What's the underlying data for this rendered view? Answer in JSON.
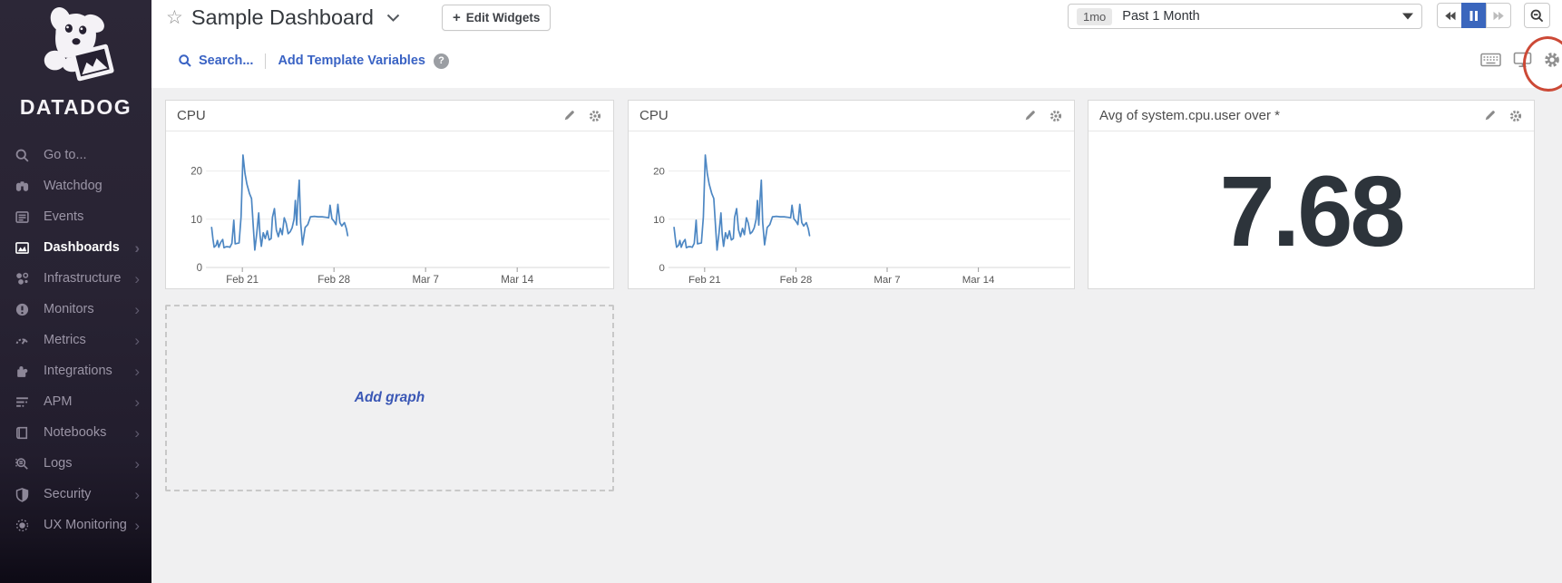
{
  "brand": {
    "name": "DATADOG"
  },
  "icons": {
    "star": "☆",
    "plus": "+",
    "chevron_right": "›",
    "question": "?"
  },
  "header": {
    "title": "Sample Dashboard",
    "edit_widgets_label": "Edit Widgets",
    "search_label": "Search...",
    "add_template_variables_label": "Add Template Variables",
    "time_range": {
      "badge": "1mo",
      "label": "Past 1 Month"
    }
  },
  "sidebar": {
    "items": [
      {
        "label": "Go to...",
        "icon": "search-icon",
        "active": false,
        "has_submenu": false
      },
      {
        "label": "Watchdog",
        "icon": "binoculars-icon",
        "active": false,
        "has_submenu": false
      },
      {
        "label": "Events",
        "icon": "events-list-icon",
        "active": false,
        "has_submenu": false
      },
      {
        "label": "Dashboards",
        "icon": "dashboards-chart-icon",
        "active": true,
        "has_submenu": true
      },
      {
        "label": "Infrastructure",
        "icon": "infrastructure-cluster-icon",
        "active": false,
        "has_submenu": true
      },
      {
        "label": "Monitors",
        "icon": "alert-circle-icon",
        "active": false,
        "has_submenu": true
      },
      {
        "label": "Metrics",
        "icon": "gauge-icon",
        "active": false,
        "has_submenu": true
      },
      {
        "label": "Integrations",
        "icon": "puzzle-icon",
        "active": false,
        "has_submenu": true
      },
      {
        "label": "APM",
        "icon": "trace-lines-icon",
        "active": false,
        "has_submenu": true
      },
      {
        "label": "Notebooks",
        "icon": "notebook-icon",
        "active": false,
        "has_submenu": true
      },
      {
        "label": "Logs",
        "icon": "logs-search-icon",
        "active": false,
        "has_submenu": true
      },
      {
        "label": "Security",
        "icon": "shield-icon",
        "active": false,
        "has_submenu": true
      },
      {
        "label": "UX Monitoring",
        "icon": "ux-target-icon",
        "active": false,
        "has_submenu": true
      }
    ]
  },
  "widgets": {
    "cpu1_title": "CPU",
    "cpu2_title": "CPU",
    "query_value_title": "Avg of system.cpu.user over *",
    "query_value": "7.68",
    "add_graph_label": "Add graph"
  },
  "annotation": {
    "shape": "hand-drawn-ellipse",
    "color": "#cc4936",
    "around": "settings-gear-icon"
  },
  "chart_data": [
    {
      "type": "line",
      "widget": "cpu-1",
      "title": "CPU",
      "x_axis": {
        "tick_labels": [
          "Feb 21",
          "Feb 28",
          "Mar 7",
          "Mar 14"
        ],
        "tick_days": [
          2.5,
          9.5,
          16.5,
          23.5
        ],
        "domain_days": [
          0,
          30
        ],
        "note": "axis spans ~Feb 18.5 to ~Mar 20.5; data ends ~Mar 1"
      },
      "y_axis": {
        "ticks": [
          0,
          10,
          20
        ],
        "lim": [
          0,
          26
        ]
      },
      "grid": true,
      "legend": false,
      "series": [
        {
          "name": "system.cpu.user",
          "color": "#4d87c3",
          "points": [
            [
              0.15,
              8.3
            ],
            [
              0.25,
              6.0
            ],
            [
              0.35,
              4.2
            ],
            [
              0.5,
              4.6
            ],
            [
              0.6,
              5.6
            ],
            [
              0.7,
              4.2
            ],
            [
              0.85,
              5.2
            ],
            [
              1.0,
              5.8
            ],
            [
              1.1,
              4.1
            ],
            [
              1.25,
              4.3
            ],
            [
              1.4,
              4.3
            ],
            [
              1.55,
              4.2
            ],
            [
              1.7,
              5.0
            ],
            [
              1.85,
              9.8
            ],
            [
              1.95,
              4.9
            ],
            [
              2.1,
              5.0
            ],
            [
              2.25,
              5.1
            ],
            [
              2.4,
              10.5
            ],
            [
              2.55,
              23.3
            ],
            [
              2.7,
              19.5
            ],
            [
              2.85,
              17.3
            ],
            [
              3.05,
              15.3
            ],
            [
              3.2,
              14.3
            ],
            [
              3.35,
              8.0
            ],
            [
              3.45,
              3.6
            ],
            [
              3.6,
              7.0
            ],
            [
              3.75,
              11.3
            ],
            [
              3.85,
              6.8
            ],
            [
              3.95,
              4.4
            ],
            [
              4.1,
              7.2
            ],
            [
              4.25,
              6.0
            ],
            [
              4.4,
              7.6
            ],
            [
              4.55,
              5.7
            ],
            [
              4.7,
              6.0
            ],
            [
              4.8,
              10.4
            ],
            [
              4.95,
              12.2
            ],
            [
              5.1,
              7.8
            ],
            [
              5.25,
              6.4
            ],
            [
              5.4,
              8.1
            ],
            [
              5.55,
              6.8
            ],
            [
              5.7,
              10.3
            ],
            [
              5.85,
              9.2
            ],
            [
              6.0,
              7.0
            ],
            [
              6.15,
              7.4
            ],
            [
              6.3,
              8.2
            ],
            [
              6.45,
              10.0
            ],
            [
              6.55,
              13.9
            ],
            [
              6.65,
              8.8
            ],
            [
              6.75,
              14.2
            ],
            [
              6.85,
              18.1
            ],
            [
              6.95,
              9.4
            ],
            [
              7.1,
              4.7
            ],
            [
              7.3,
              8.3
            ],
            [
              7.5,
              8.9
            ],
            [
              7.7,
              10.5
            ],
            [
              8.0,
              10.6
            ],
            [
              8.3,
              10.5
            ],
            [
              8.6,
              10.5
            ],
            [
              8.9,
              10.4
            ],
            [
              9.1,
              10.3
            ],
            [
              9.2,
              12.9
            ],
            [
              9.35,
              10.1
            ],
            [
              9.5,
              9.6
            ],
            [
              9.65,
              8.9
            ],
            [
              9.8,
              13.1
            ],
            [
              9.95,
              9.3
            ],
            [
              10.1,
              8.6
            ],
            [
              10.3,
              9.3
            ],
            [
              10.45,
              8.0
            ],
            [
              10.55,
              6.6
            ]
          ]
        }
      ]
    },
    {
      "type": "line",
      "widget": "cpu-2",
      "title": "CPU",
      "x_axis": {
        "tick_labels": [
          "Feb 21",
          "Feb 28",
          "Mar 7",
          "Mar 14"
        ],
        "tick_days": [
          2.5,
          9.5,
          16.5,
          23.5
        ],
        "domain_days": [
          0,
          30
        ],
        "note": "identical to cpu-1"
      },
      "y_axis": {
        "ticks": [
          0,
          10,
          20
        ],
        "lim": [
          0,
          26
        ]
      },
      "grid": true,
      "legend": false,
      "series": [
        {
          "name": "system.cpu.user",
          "color": "#4d87c3",
          "points": [
            [
              0.15,
              8.3
            ],
            [
              0.25,
              6.0
            ],
            [
              0.35,
              4.2
            ],
            [
              0.5,
              4.6
            ],
            [
              0.6,
              5.6
            ],
            [
              0.7,
              4.2
            ],
            [
              0.85,
              5.2
            ],
            [
              1.0,
              5.8
            ],
            [
              1.1,
              4.1
            ],
            [
              1.25,
              4.3
            ],
            [
              1.4,
              4.3
            ],
            [
              1.55,
              4.2
            ],
            [
              1.7,
              5.0
            ],
            [
              1.85,
              9.8
            ],
            [
              1.95,
              4.9
            ],
            [
              2.1,
              5.0
            ],
            [
              2.25,
              5.1
            ],
            [
              2.4,
              10.5
            ],
            [
              2.55,
              23.3
            ],
            [
              2.7,
              19.5
            ],
            [
              2.85,
              17.3
            ],
            [
              3.05,
              15.3
            ],
            [
              3.2,
              14.3
            ],
            [
              3.35,
              8.0
            ],
            [
              3.45,
              3.6
            ],
            [
              3.6,
              7.0
            ],
            [
              3.75,
              11.3
            ],
            [
              3.85,
              6.8
            ],
            [
              3.95,
              4.4
            ],
            [
              4.1,
              7.2
            ],
            [
              4.25,
              6.0
            ],
            [
              4.4,
              7.6
            ],
            [
              4.55,
              5.7
            ],
            [
              4.7,
              6.0
            ],
            [
              4.8,
              10.4
            ],
            [
              4.95,
              12.2
            ],
            [
              5.1,
              7.8
            ],
            [
              5.25,
              6.4
            ],
            [
              5.4,
              8.1
            ],
            [
              5.55,
              6.8
            ],
            [
              5.7,
              10.3
            ],
            [
              5.85,
              9.2
            ],
            [
              6.0,
              7.0
            ],
            [
              6.15,
              7.4
            ],
            [
              6.3,
              8.2
            ],
            [
              6.45,
              10.0
            ],
            [
              6.55,
              13.9
            ],
            [
              6.65,
              8.8
            ],
            [
              6.75,
              14.2
            ],
            [
              6.85,
              18.1
            ],
            [
              6.95,
              9.4
            ],
            [
              7.1,
              4.7
            ],
            [
              7.3,
              8.3
            ],
            [
              7.5,
              8.9
            ],
            [
              7.7,
              10.5
            ],
            [
              8.0,
              10.6
            ],
            [
              8.3,
              10.5
            ],
            [
              8.6,
              10.5
            ],
            [
              8.9,
              10.4
            ],
            [
              9.1,
              10.3
            ],
            [
              9.2,
              12.9
            ],
            [
              9.35,
              10.1
            ],
            [
              9.5,
              9.6
            ],
            [
              9.65,
              8.9
            ],
            [
              9.8,
              13.1
            ],
            [
              9.95,
              9.3
            ],
            [
              10.1,
              8.6
            ],
            [
              10.3,
              9.3
            ],
            [
              10.45,
              8.0
            ],
            [
              10.55,
              6.6
            ]
          ]
        }
      ]
    },
    {
      "type": "query_value",
      "widget": "query-value",
      "title": "Avg of system.cpu.user over *",
      "value": 7.68,
      "display": "7.68"
    }
  ]
}
